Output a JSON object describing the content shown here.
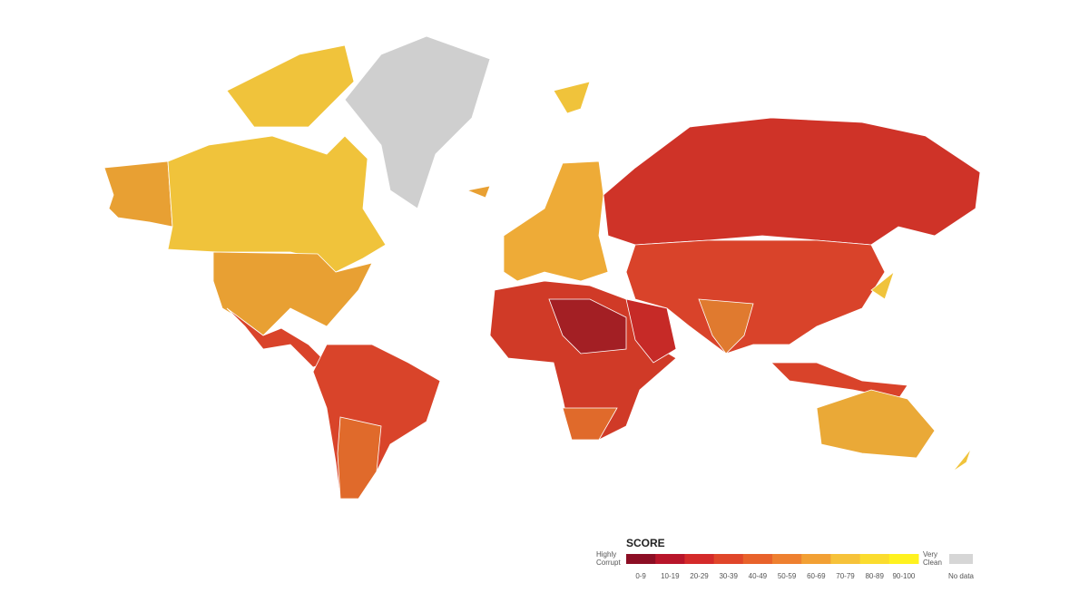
{
  "legend": {
    "title": "SCORE",
    "low_label": [
      "Highly",
      "Corrupt"
    ],
    "high_label": [
      "Very",
      "Clean"
    ],
    "bins": [
      {
        "label": "0-9",
        "color": "#8c0e24"
      },
      {
        "label": "10-19",
        "color": "#b8152a"
      },
      {
        "label": "20-29",
        "color": "#d42a2a"
      },
      {
        "label": "30-39",
        "color": "#e0462a"
      },
      {
        "label": "40-49",
        "color": "#e8622b"
      },
      {
        "label": "50-59",
        "color": "#ee8030"
      },
      {
        "label": "60-69",
        "color": "#f2a034"
      },
      {
        "label": "70-79",
        "color": "#f6c23a"
      },
      {
        "label": "80-89",
        "color": "#fbdc2e"
      },
      {
        "label": "90-100",
        "color": "#fff21f"
      }
    ],
    "no_data": {
      "label": "No data",
      "color": "#d6d6d6"
    }
  }
}
